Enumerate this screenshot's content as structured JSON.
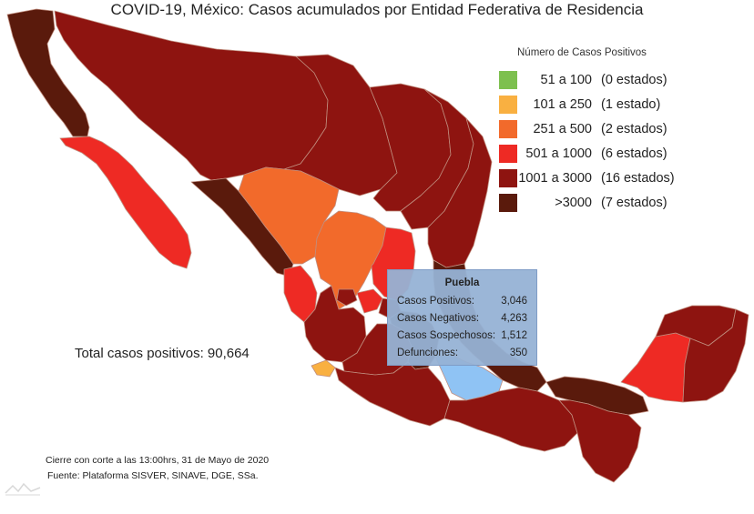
{
  "title": "COVID-19, México: Casos acumulados por Entidad Federativa de Residencia",
  "legend": {
    "title": "Número de Casos Positivos",
    "items": [
      {
        "range": "51 a 100",
        "count": "(0 estados)",
        "color": "#7dc04f"
      },
      {
        "range": "101 a 250",
        "count": "(1 estado)",
        "color": "#f9b041"
      },
      {
        "range": "251 a 500",
        "count": "(2 estados)",
        "color": "#f26a2b"
      },
      {
        "range": "501 a 1000",
        "count": "(6 estados)",
        "color": "#ee2a24"
      },
      {
        "range": "1001 a 3000",
        "count": "(16 estados)",
        "color": "#8e1410"
      },
      {
        "range": ">3000",
        "count": "(7 estados)",
        "color": "#5a1a0c"
      }
    ]
  },
  "total_label": "Total casos positivos: 90,664",
  "tooltip": {
    "state": "Puebla",
    "rows": [
      {
        "label": "Casos Positivos:",
        "value": "3,046"
      },
      {
        "label": "Casos Negativos:",
        "value": "4,263"
      },
      {
        "label": "Casos Sospechosos:",
        "value": "1,512"
      },
      {
        "label": "Defunciones:",
        "value": "350"
      }
    ]
  },
  "footer": {
    "cutoff": "Cierre con corte a las 13:00hrs, 31 de Mayo de 2020",
    "source": "Fuente: Plataforma SISVER, SINAVE, DGE, SSa."
  },
  "colors": {
    "highlight": "#8fc3f4",
    "border": "#c79a8a"
  }
}
